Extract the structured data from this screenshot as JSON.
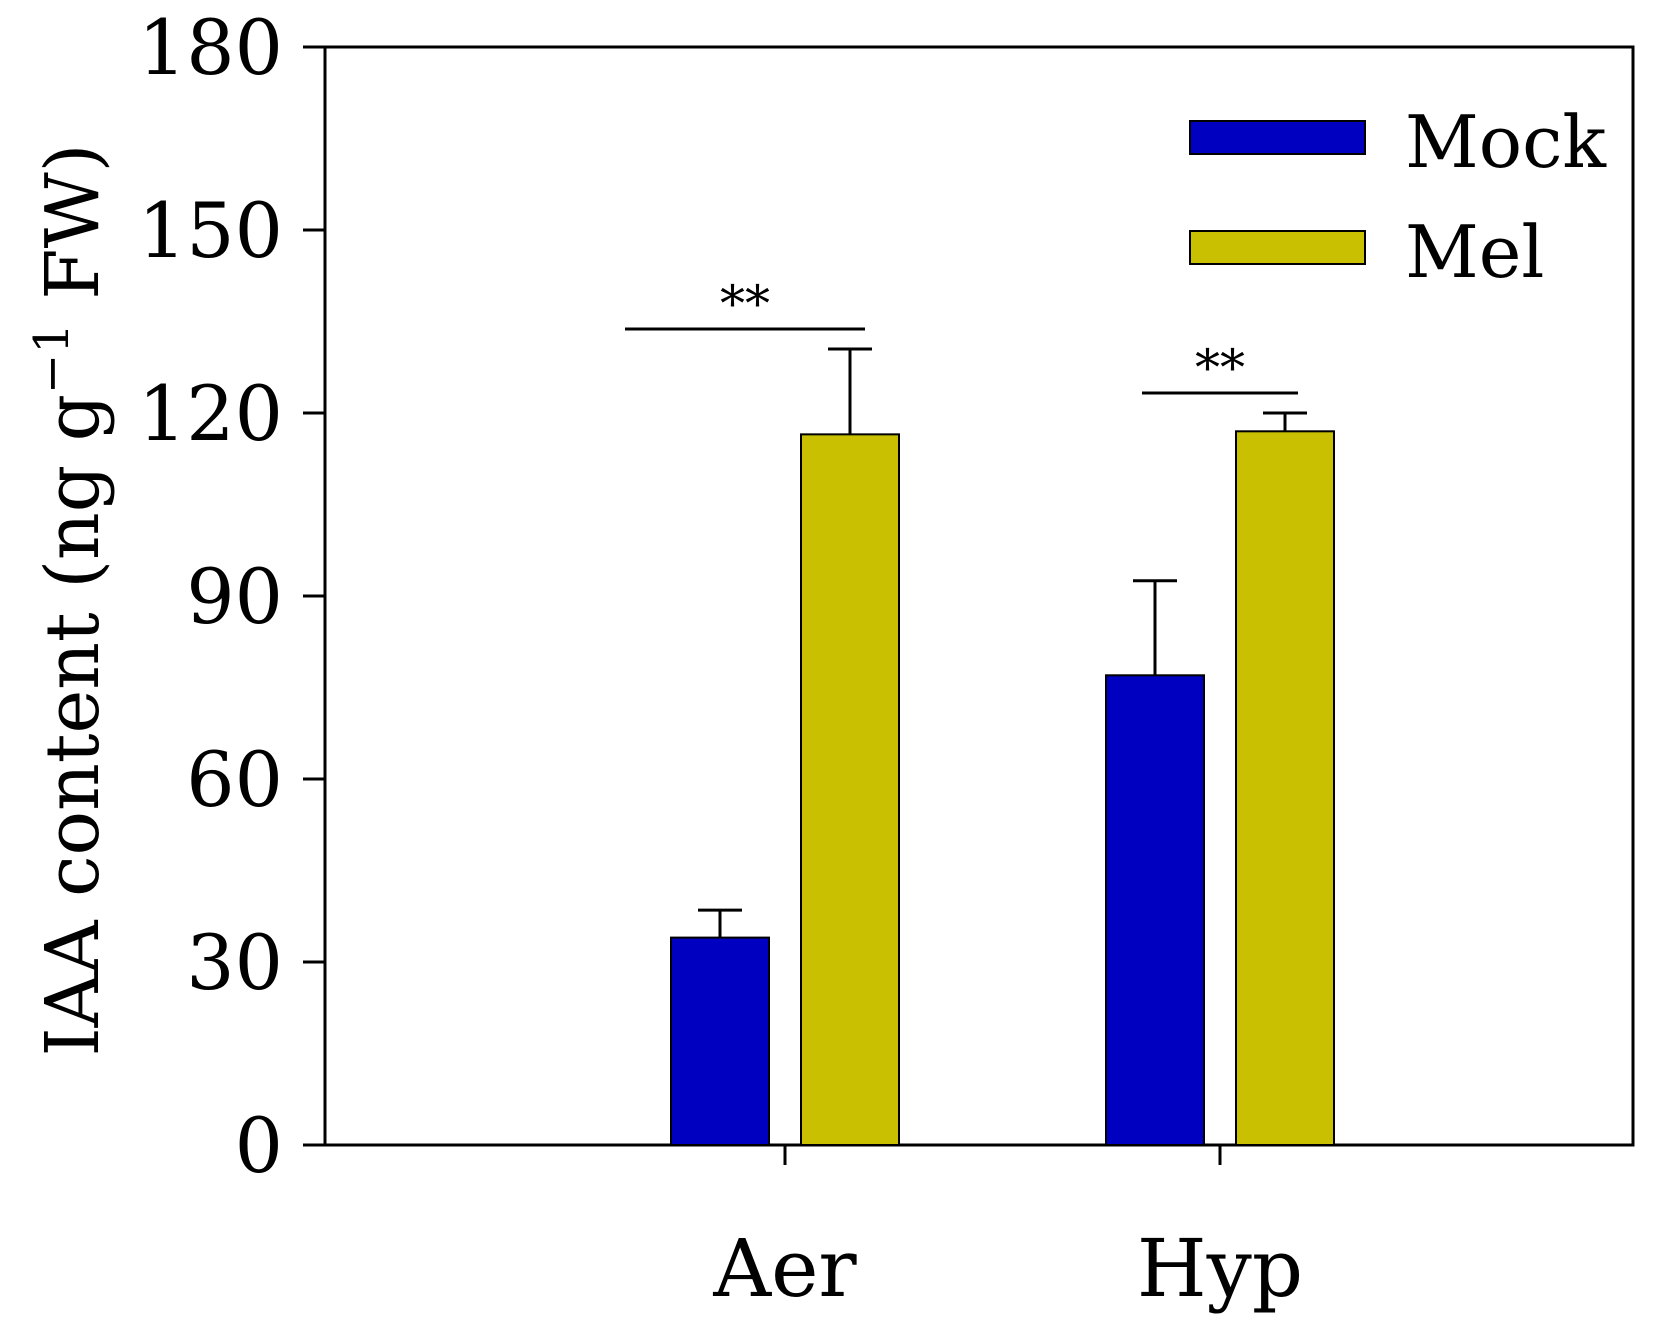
{
  "chart_data": {
    "type": "bar",
    "title": "",
    "xlabel": "",
    "ylabel": {
      "before": "IAA content (ng g",
      "superscript": "−1",
      "after": " FW)"
    },
    "ylim": [
      0,
      180
    ],
    "yticks": [
      "0",
      "30",
      "60",
      "90",
      "120",
      "150",
      "180"
    ],
    "categories": [
      "Aer",
      "Hyp"
    ],
    "legend_position": "top-right",
    "series": [
      {
        "name": "Mock",
        "color": "#0000C0",
        "values": [
          34,
          77
        ],
        "errors": [
          4.5,
          15.5
        ]
      },
      {
        "name": "Mel",
        "color": "#C8C000",
        "values": [
          116.5,
          117
        ],
        "errors": [
          14,
          3
        ]
      }
    ],
    "significance": [
      {
        "category": "Aer",
        "label": "**"
      },
      {
        "category": "Hyp",
        "label": "**"
      }
    ],
    "grid": false
  }
}
